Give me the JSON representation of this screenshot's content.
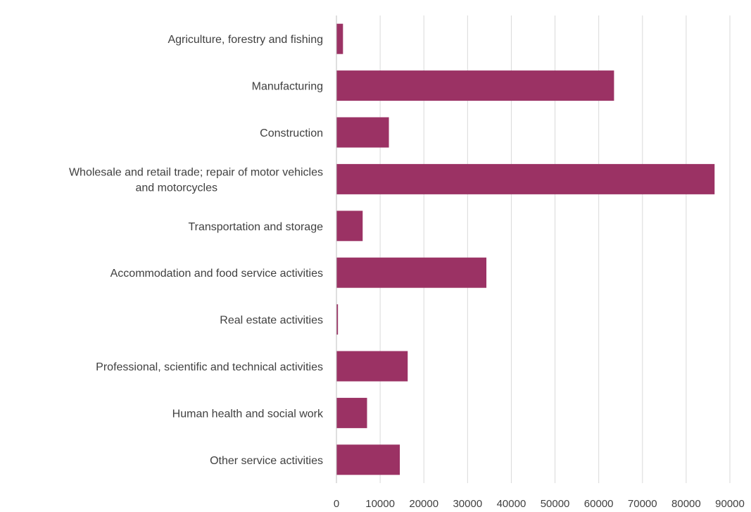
{
  "chart_data": {
    "type": "bar",
    "orientation": "horizontal",
    "title": "",
    "xlabel": "",
    "ylabel": "",
    "categories": [
      "Agriculture, forestry and fishing",
      "Manufacturing",
      "Construction",
      "Wholesale and retail trade; repair of motor vehicles and motorcycles",
      "Transportation and storage",
      "Accommodation and food service activities",
      "Real estate activities",
      "Professional, scientific and technical activities",
      "Human health and social work",
      "Other service activities"
    ],
    "category_lines": [
      [
        "Agriculture, forestry and fishing"
      ],
      [
        "Manufacturing"
      ],
      [
        "Construction"
      ],
      [
        "Wholesale and retail trade; repair of motor vehicles",
        "and motorcycles"
      ],
      [
        "Transportation and storage"
      ],
      [
        "Accommodation and food service activities"
      ],
      [
        "Real estate activities"
      ],
      [
        "Professional, scientific and technical activities"
      ],
      [
        "Human health and social work"
      ],
      [
        "Other service activities"
      ]
    ],
    "values": [
      1500,
      63500,
      12000,
      86500,
      6000,
      34300,
      350,
      16300,
      7000,
      14500
    ],
    "xlim": [
      0,
      90000
    ],
    "ticks": [
      0,
      10000,
      20000,
      30000,
      40000,
      50000,
      60000,
      70000,
      80000,
      90000
    ],
    "tick_labels": [
      "0",
      "10000",
      "20000",
      "30000",
      "40000",
      "50000",
      "60000",
      "70000",
      "80000",
      "90000"
    ],
    "grid": true,
    "legend": "none",
    "bar_color": "#9b3264",
    "grid_color": "#d9d9d9",
    "text_color": "#404040"
  }
}
